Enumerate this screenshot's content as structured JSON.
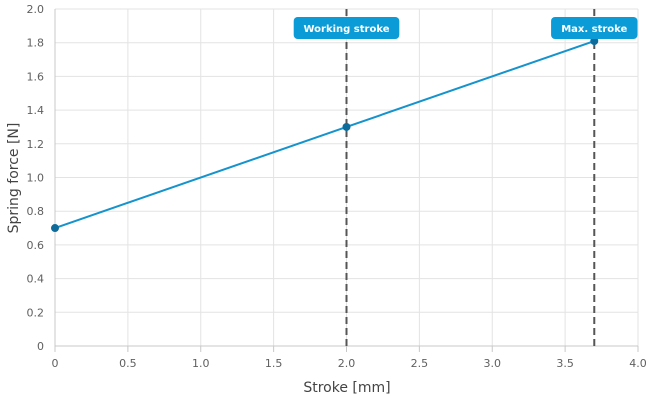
{
  "chart_data": {
    "type": "line",
    "xlabel": "Stroke [mm]",
    "ylabel": "Spring force [N]",
    "xlim": [
      0,
      4
    ],
    "ylim": [
      0,
      2
    ],
    "x_ticks": [
      "0",
      "0.5",
      "1.0",
      "1.5",
      "2.0",
      "2.5",
      "3.0",
      "3.5",
      "4.0"
    ],
    "y_ticks": [
      "0",
      "0.2",
      "0.4",
      "0.6",
      "0.8",
      "1.0",
      "1.2",
      "1.4",
      "1.6",
      "1.8",
      "2.0"
    ],
    "grid": true,
    "series": [
      {
        "x": [
          0,
          2.0,
          3.7
        ],
        "y": [
          0.7,
          1.3,
          1.81
        ]
      }
    ],
    "markers": [
      {
        "x": 2.0,
        "label": "Working stroke"
      },
      {
        "x": 3.7,
        "label": "Max. stroke"
      }
    ],
    "colors": {
      "line": "#1593cd",
      "point": "#0f6b99",
      "badge": "#0b9bd7",
      "marker_line": "#555555"
    }
  }
}
